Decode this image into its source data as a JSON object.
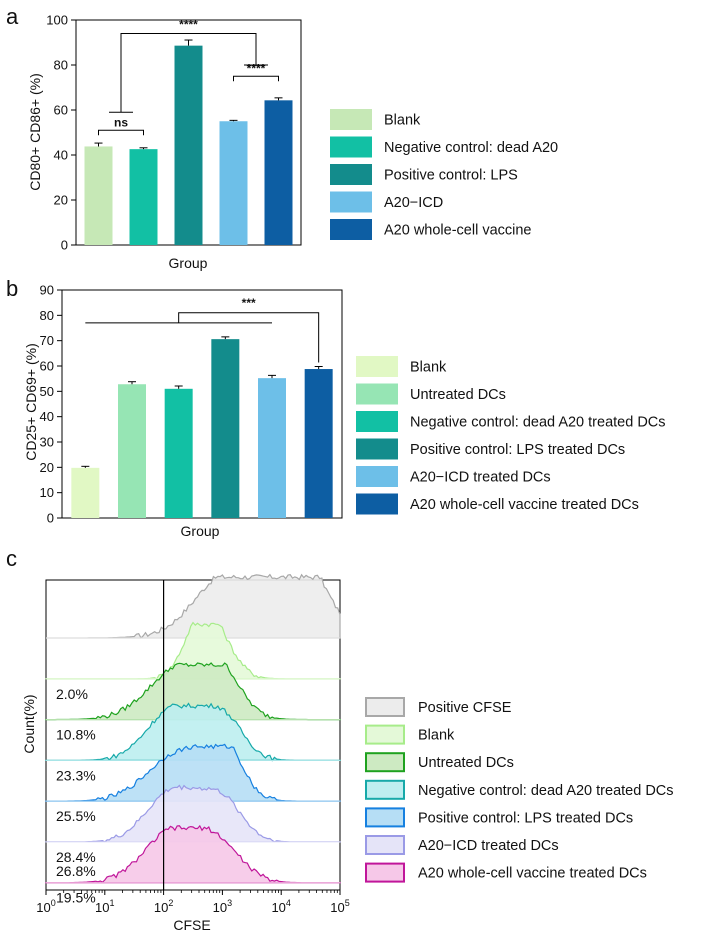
{
  "figure": {
    "panels": [
      "a",
      "b",
      "c"
    ]
  },
  "chart_data": [
    {
      "id": "a",
      "type": "bar",
      "xlabel": "Group",
      "ylabel": "CD80+ CD86+ (%)",
      "ylim": [
        0,
        100
      ],
      "yticks": [
        0,
        20,
        40,
        60,
        80,
        100
      ],
      "categories": [
        "Blank",
        "Negative control: dead A20",
        "Positive control: LPS",
        "A20−ICD",
        "A20 whole-cell vaccine"
      ],
      "values": [
        43.8,
        42.6,
        88.6,
        55.0,
        64.3
      ],
      "errors": [
        1.5,
        0.6,
        2.5,
        0.4,
        1.1
      ],
      "colors": [
        "#c6e8b6",
        "#12c0a4",
        "#138c8c",
        "#6dbfe8",
        "#0d5ea3"
      ],
      "annotations": [
        {
          "label": "ns",
          "type": "pair",
          "from": 0,
          "to": 1,
          "level": 51
        },
        {
          "label": "****",
          "type": "pair",
          "from": 3,
          "to": 4,
          "level": 75
        },
        {
          "label": "****",
          "type": "group",
          "left": [
            0,
            1
          ],
          "right": [
            3,
            4
          ],
          "leftLevel": 59,
          "rightLevel": 80,
          "top": 94
        }
      ]
    },
    {
      "id": "b",
      "type": "bar",
      "xlabel": "Group",
      "ylabel": "CD25+ CD69+ (%)",
      "ylim": [
        0,
        90
      ],
      "yticks": [
        0,
        10,
        20,
        30,
        40,
        50,
        60,
        70,
        80,
        90
      ],
      "categories": [
        "Blank",
        "Untreated DCs",
        "Negative control: dead A20 treated DCs",
        "Positive control: LPS treated DCs",
        "A20−ICD treated DCs",
        "A20 whole-cell vaccine treated DCs"
      ],
      "values": [
        19.8,
        52.8,
        51.0,
        70.6,
        55.2,
        58.8
      ],
      "errors": [
        0.6,
        1.0,
        1.1,
        0.9,
        1.1,
        1.0
      ],
      "colors": [
        "#e1f8c4",
        "#96e5b4",
        "#12c0a4",
        "#138c8c",
        "#6dbfe8",
        "#0d5ea3"
      ],
      "annotations": [
        {
          "label": "***",
          "type": "bracket",
          "from": 0,
          "to": 4,
          "target": 5,
          "level": 77,
          "top": 81
        }
      ]
    },
    {
      "id": "c",
      "type": "histogram",
      "xlabel": "CFSE",
      "ylabel": "Count(%)",
      "xscale": "log",
      "xlim": [
        1,
        100000
      ],
      "xticks": [
        {
          "base": "10",
          "exp": "0"
        },
        {
          "base": "10",
          "exp": "1"
        },
        {
          "base": "10",
          "exp": "2"
        },
        {
          "base": "10",
          "exp": "3"
        },
        {
          "base": "10",
          "exp": "4"
        },
        {
          "base": "10",
          "exp": "5"
        }
      ],
      "gate": 100,
      "series": [
        {
          "name": "Positive CFSE",
          "stroke": "#a8a8a8",
          "fill": "#ececec",
          "percent": "",
          "peaks": [
            [
              5000,
              0.8,
              1.0
            ],
            [
              25000,
              0.35,
              0.75
            ],
            [
              800,
              0.45,
              0.45
            ]
          ]
        },
        {
          "name": "Blank",
          "stroke": "#a7ec8a",
          "fill": "#e4f9d8",
          "percent": "2.0%",
          "peaks": [
            [
              420,
              0.28,
              1.0
            ],
            [
              900,
              0.3,
              0.55
            ]
          ]
        },
        {
          "name": "Untreated DCs",
          "stroke": "#1fa21f",
          "fill": "#cdeac2",
          "percent": "10.8%",
          "peaks": [
            [
              200,
              0.55,
              1.0
            ],
            [
              900,
              0.35,
              0.7
            ]
          ]
        },
        {
          "name": "Negative control: dead A20 treated DCs",
          "stroke": "#16a9a9",
          "fill": "#bdeef0",
          "percent": "23.3%",
          "peaks": [
            [
              150,
              0.45,
              1.0
            ],
            [
              1000,
              0.35,
              0.8
            ]
          ]
        },
        {
          "name": "Positive control: LPS treated DCs",
          "stroke": "#1680e0",
          "fill": "#b6def5",
          "percent": "25.5%",
          "peaks": [
            [
              200,
              0.55,
              0.95
            ],
            [
              1100,
              0.3,
              0.85
            ]
          ]
        },
        {
          "name": "A20−ICD treated DCs",
          "stroke": "#9a9ae6",
          "fill": "#e5e4f8",
          "percent": "28.4%",
          "peaks": [
            [
              150,
              0.45,
              1.0
            ],
            [
              1000,
              0.35,
              0.75
            ]
          ]
        },
        {
          "name": "A20 whole-cell vaccine treated DCs",
          "stroke": "#c0169a",
          "fill": "#f6c8e8",
          "percent": "19.5%",
          "peaks": [
            [
              150,
              0.5,
              1.0
            ],
            [
              900,
              0.4,
              0.6
            ]
          ]
        }
      ],
      "bottom_percent": "26.8%"
    }
  ]
}
